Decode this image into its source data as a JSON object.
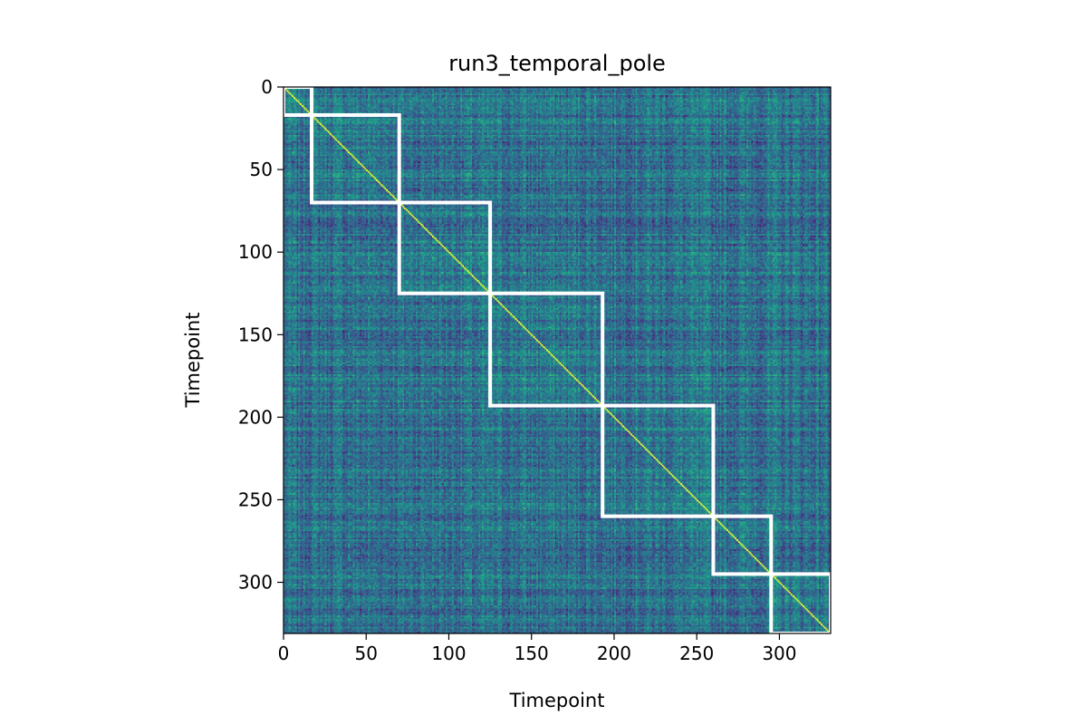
{
  "chart_data": {
    "type": "heatmap",
    "title": "run3_temporal_pole",
    "xlabel": "Timepoint",
    "ylabel": "Timepoint",
    "xlim": [
      0,
      331
    ],
    "ylim": [
      331,
      0
    ],
    "xticks": [
      0,
      50,
      100,
      150,
      200,
      250,
      300
    ],
    "yticks": [
      0,
      50,
      100,
      150,
      200,
      250,
      300
    ],
    "colormap": "viridis",
    "diagonal": "bright (self-correlation)",
    "event_boundaries": [
      0,
      17,
      70,
      125,
      193,
      260,
      295,
      331
    ],
    "boundary_color": "#ffffff",
    "grid": false,
    "legend": "none"
  }
}
